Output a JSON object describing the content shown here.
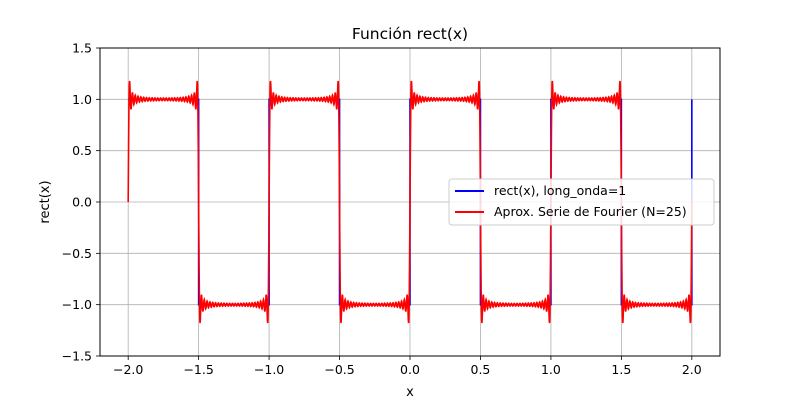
{
  "chart_data": {
    "type": "line",
    "title": "Función rect(x)",
    "xlabel": "x",
    "ylabel": "rect(x)",
    "xlim": [
      -2.2,
      2.2
    ],
    "ylim": [
      -1.5,
      1.5
    ],
    "xticks": [
      -2.0,
      -1.5,
      -1.0,
      -0.5,
      0.0,
      0.5,
      1.0,
      1.5,
      2.0
    ],
    "xtick_labels": [
      "−2.0",
      "−1.5",
      "−1.0",
      "−0.5",
      "0.0",
      "0.5",
      "1.0",
      "1.5",
      "2.0"
    ],
    "yticks": [
      -1.5,
      -1.0,
      -0.5,
      0.0,
      0.5,
      1.0,
      1.5
    ],
    "ytick_labels": [
      "−1.5",
      "−1.0",
      "−0.5",
      "0.0",
      "0.5",
      "1.0",
      "1.5"
    ],
    "grid": true,
    "legend_position": "center-right",
    "series": [
      {
        "name": "rect(x), long_onda=1",
        "color": "#0000ff",
        "kind": "square_wave",
        "x_range": [
          -2.0,
          2.0
        ],
        "wavelength": 1,
        "high_value": 1,
        "low_value": -1
      },
      {
        "name": "Aprox. Serie de Fourier (N=25)",
        "color": "#ff0000",
        "kind": "fourier_square",
        "x_range": [
          -2.0,
          2.0
        ],
        "wavelength": 1,
        "N": 25
      }
    ]
  }
}
